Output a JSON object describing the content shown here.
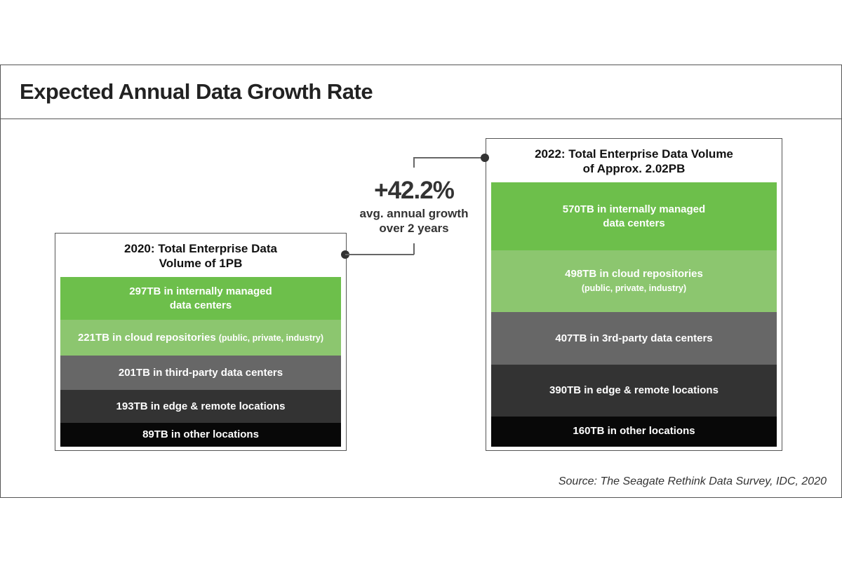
{
  "title": "Expected Annual Data Growth Rate",
  "growth": {
    "value": "+42.2%",
    "line1": "avg. annual growth",
    "line2": "over 2 years"
  },
  "source": "Source: The Seagate Rethink Data Survey, IDC, 2020",
  "chart_data": {
    "type": "bar",
    "stacked": true,
    "unit": "TB",
    "categories": [
      "2020",
      "2022"
    ],
    "colors": [
      "#6dbf4b",
      "#8cc66f",
      "#676767",
      "#333333",
      "#080808"
    ],
    "bars": [
      {
        "title1": "2020: Total Enterprise Data",
        "title2": "Volume of 1PB",
        "segments": [
          {
            "value": 297,
            "label": "297TB in internally managed",
            "label2": "data centers"
          },
          {
            "value": 221,
            "label": "221TB in cloud repositories",
            "label2": "(public, private, industry)"
          },
          {
            "value": 201,
            "label": "201TB in third-party data centers"
          },
          {
            "value": 193,
            "label": "193TB in edge & remote locations"
          },
          {
            "value": 89,
            "label": "89TB in other locations"
          }
        ]
      },
      {
        "title1": "2022: Total Enterprise Data Volume",
        "title2": "of Approx. 2.02PB",
        "segments": [
          {
            "value": 570,
            "label": "570TB in internally managed",
            "label2": "data centers"
          },
          {
            "value": 498,
            "label": "498TB in cloud repositories",
            "label2": "(public, private, industry)"
          },
          {
            "value": 407,
            "label": "407TB in 3rd-party data centers"
          },
          {
            "value": 390,
            "label": "390TB in edge & remote locations"
          },
          {
            "value": 160,
            "label": "160TB in other locations"
          }
        ]
      }
    ]
  }
}
